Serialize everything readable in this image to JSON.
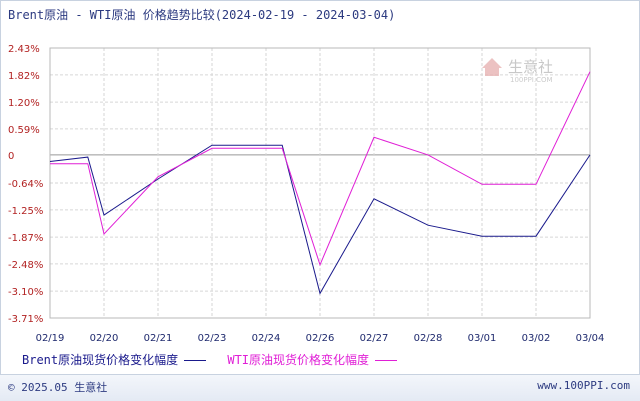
{
  "title": "Brent原油 - WTI原油 价格趋势比较(2024-02-19 - 2024-03-04)",
  "watermark": {
    "text": "生意社",
    "sub": "100PPI.COM"
  },
  "footer": {
    "copyright": "© 2025.05 生意社",
    "site": "www.100PPI.com"
  },
  "colors": {
    "series1": "#1a1a8c",
    "series2": "#e01fd6",
    "zero_line": "#999999",
    "grid": "#d6d6d6"
  },
  "chart_data": {
    "type": "line",
    "categories": [
      "02/19",
      "02/20",
      "02/21",
      "02/23",
      "02/24",
      "02/26",
      "02/27",
      "02/28",
      "03/01",
      "03/02",
      "03/04"
    ],
    "x_ticks": [
      "02/19",
      "02/20",
      "02/21",
      "02/23",
      "02/24",
      "02/26",
      "02/27",
      "02/28",
      "03/01",
      "03/02",
      "03/04"
    ],
    "y_ticks": [
      "2.43%",
      "1.82%",
      "1.20%",
      "0.59%",
      "0",
      "-0.64%",
      "-1.25%",
      "-1.87%",
      "-2.48%",
      "-3.10%",
      "-3.71%"
    ],
    "ylim": [
      -3.71,
      2.43
    ],
    "series": [
      {
        "name": "Brent原油现货价格变化幅度",
        "points": [
          {
            "x": "02/19",
            "y": -0.15
          },
          {
            "x": "02/19.7",
            "y": -0.05
          },
          {
            "x": "02/20",
            "y": -1.37
          },
          {
            "x": "02/21",
            "y": -0.55
          },
          {
            "x": "02/23",
            "y": 0.22
          },
          {
            "x": "02/24",
            "y": 0.22
          },
          {
            "x": "02/24.3",
            "y": 0.22
          },
          {
            "x": "02/26",
            "y": -3.15
          },
          {
            "x": "02/27",
            "y": -1.0
          },
          {
            "x": "02/28",
            "y": -1.6
          },
          {
            "x": "03/01",
            "y": -1.85
          },
          {
            "x": "03/02",
            "y": -1.85
          },
          {
            "x": "03/04",
            "y": 0.0
          }
        ]
      },
      {
        "name": "WTI原油现货价格变化幅度",
        "points": [
          {
            "x": "02/19",
            "y": -0.2
          },
          {
            "x": "02/19.7",
            "y": -0.2
          },
          {
            "x": "02/20",
            "y": -1.8
          },
          {
            "x": "02/21",
            "y": -0.5
          },
          {
            "x": "02/23",
            "y": 0.15
          },
          {
            "x": "02/24",
            "y": 0.15
          },
          {
            "x": "02/24.3",
            "y": 0.15
          },
          {
            "x": "02/26",
            "y": -2.5
          },
          {
            "x": "02/27",
            "y": 0.4
          },
          {
            "x": "02/28",
            "y": 0.0
          },
          {
            "x": "03/01",
            "y": -0.67
          },
          {
            "x": "03/02",
            "y": -0.67
          },
          {
            "x": "03/04",
            "y": 1.89
          }
        ]
      }
    ]
  }
}
